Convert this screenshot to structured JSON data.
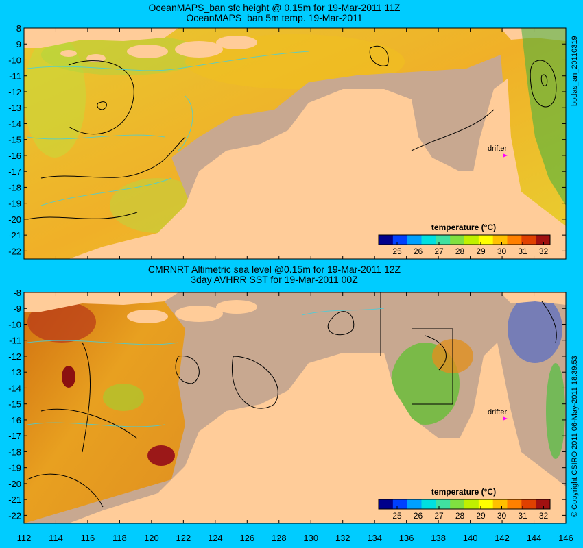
{
  "top_panel": {
    "title_line1": "OceanMAPS_ban sfc height @ 0.15m for 19-Mar-2011 11Z",
    "title_line2": "OceanMAPS_ban 5m temp. 19-Mar-2011",
    "side_label": "bodas_an_20110319",
    "drifter_label": "drifter",
    "colorbar_title": "temperature (°C)"
  },
  "bottom_panel": {
    "title_line1": "CMRNRT Altimetric sea level  @0.15m  for 19-Mar-2011 12Z",
    "title_line2": "3day AVHRR SST for 19-Mar-2011 00Z",
    "side_label": "© Copyright CSIRO 2011   06-May-2011 18:39:53",
    "drifter_label": "drifter",
    "colorbar_title": "temperature (°C)"
  },
  "axes": {
    "lon_ticks": [
      "112",
      "114",
      "116",
      "118",
      "120",
      "122",
      "124",
      "126",
      "128",
      "130",
      "132",
      "134",
      "136",
      "138",
      "140",
      "142",
      "144",
      "146"
    ],
    "lat_ticks": [
      "-8",
      "-9",
      "-10",
      "-11",
      "-12",
      "-13",
      "-14",
      "-15",
      "-16",
      "-17",
      "-18",
      "-19",
      "-20",
      "-21",
      "-22"
    ]
  },
  "colorbar": {
    "ticks": [
      "25",
      "26",
      "27",
      "28",
      "29",
      "30",
      "31",
      "32"
    ],
    "colors": [
      "#00008b",
      "#0040ff",
      "#00a0ff",
      "#00e0e0",
      "#40e0a0",
      "#80e040",
      "#c0f000",
      "#ffff00",
      "#ffc000",
      "#ff8000",
      "#e04000",
      "#a01010"
    ]
  },
  "colors": {
    "background": "#00ccff",
    "land": "#ffcc99",
    "shelf": "#c8a890",
    "sea_warm": "#f0c020",
    "sea_mid": "#c8e030",
    "contour": "#000000",
    "drifter": "#ff00ff"
  }
}
